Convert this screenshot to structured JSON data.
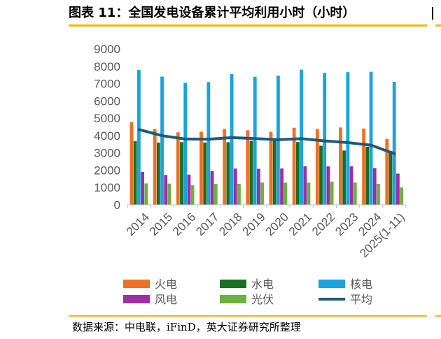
{
  "header": {
    "title": "图表 11：全国发电设备累计平均利用小时（小时）"
  },
  "footer": {
    "source": "数据来源：中电联，iFinD，英大证券研究所整理"
  },
  "chart_data": {
    "type": "bar",
    "title": "图表 11：全国发电设备累计平均利用小时（小时）",
    "ylabel": "",
    "xlabel": "",
    "ylim": [
      0,
      9000
    ],
    "yticks": [
      0,
      1000,
      2000,
      3000,
      4000,
      5000,
      6000,
      7000,
      8000,
      9000
    ],
    "categories": [
      "2014",
      "2015",
      "2016",
      "2017",
      "2018",
      "2019",
      "2020",
      "2021",
      "2022",
      "2023",
      "2024",
      "2025(1-11)"
    ],
    "series": [
      {
        "name": "火电",
        "kind": "bar",
        "color": "#ed7125",
        "values": [
          4778,
          4364,
          4186,
          4219,
          4378,
          4307,
          4216,
          4448,
          4379,
          4466,
          4400,
          3800
        ]
      },
      {
        "name": "水电",
        "kind": "bar",
        "color": "#1b6e23",
        "values": [
          3669,
          3590,
          3619,
          3597,
          3613,
          3697,
          3827,
          3622,
          3412,
          3133,
          3349,
          3100
        ]
      },
      {
        "name": "核电",
        "kind": "bar",
        "color": "#1aa3dc",
        "values": [
          7787,
          7403,
          7042,
          7089,
          7543,
          7394,
          7453,
          7802,
          7616,
          7661,
          7683,
          7100
        ]
      },
      {
        "name": "风电",
        "kind": "bar",
        "color": "#9b2fa3",
        "values": [
          1900,
          1724,
          1745,
          1948,
          2095,
          2082,
          2097,
          2232,
          2218,
          2225,
          2127,
          1800
        ]
      },
      {
        "name": "光伏",
        "kind": "bar",
        "color": "#6ab23e",
        "values": [
          1235,
          1225,
          1125,
          1204,
          1212,
          1285,
          1281,
          1281,
          1340,
          1286,
          1211,
          1000
        ]
      },
      {
        "name": "平均",
        "kind": "line",
        "color": "#1f5a7a",
        "values": [
          4348,
          3988,
          3797,
          3790,
          3880,
          3825,
          3758,
          3817,
          3687,
          3592,
          3442,
          2950
        ]
      }
    ],
    "legend": {
      "position": "bottom",
      "columns": 3
    },
    "grid": false
  }
}
